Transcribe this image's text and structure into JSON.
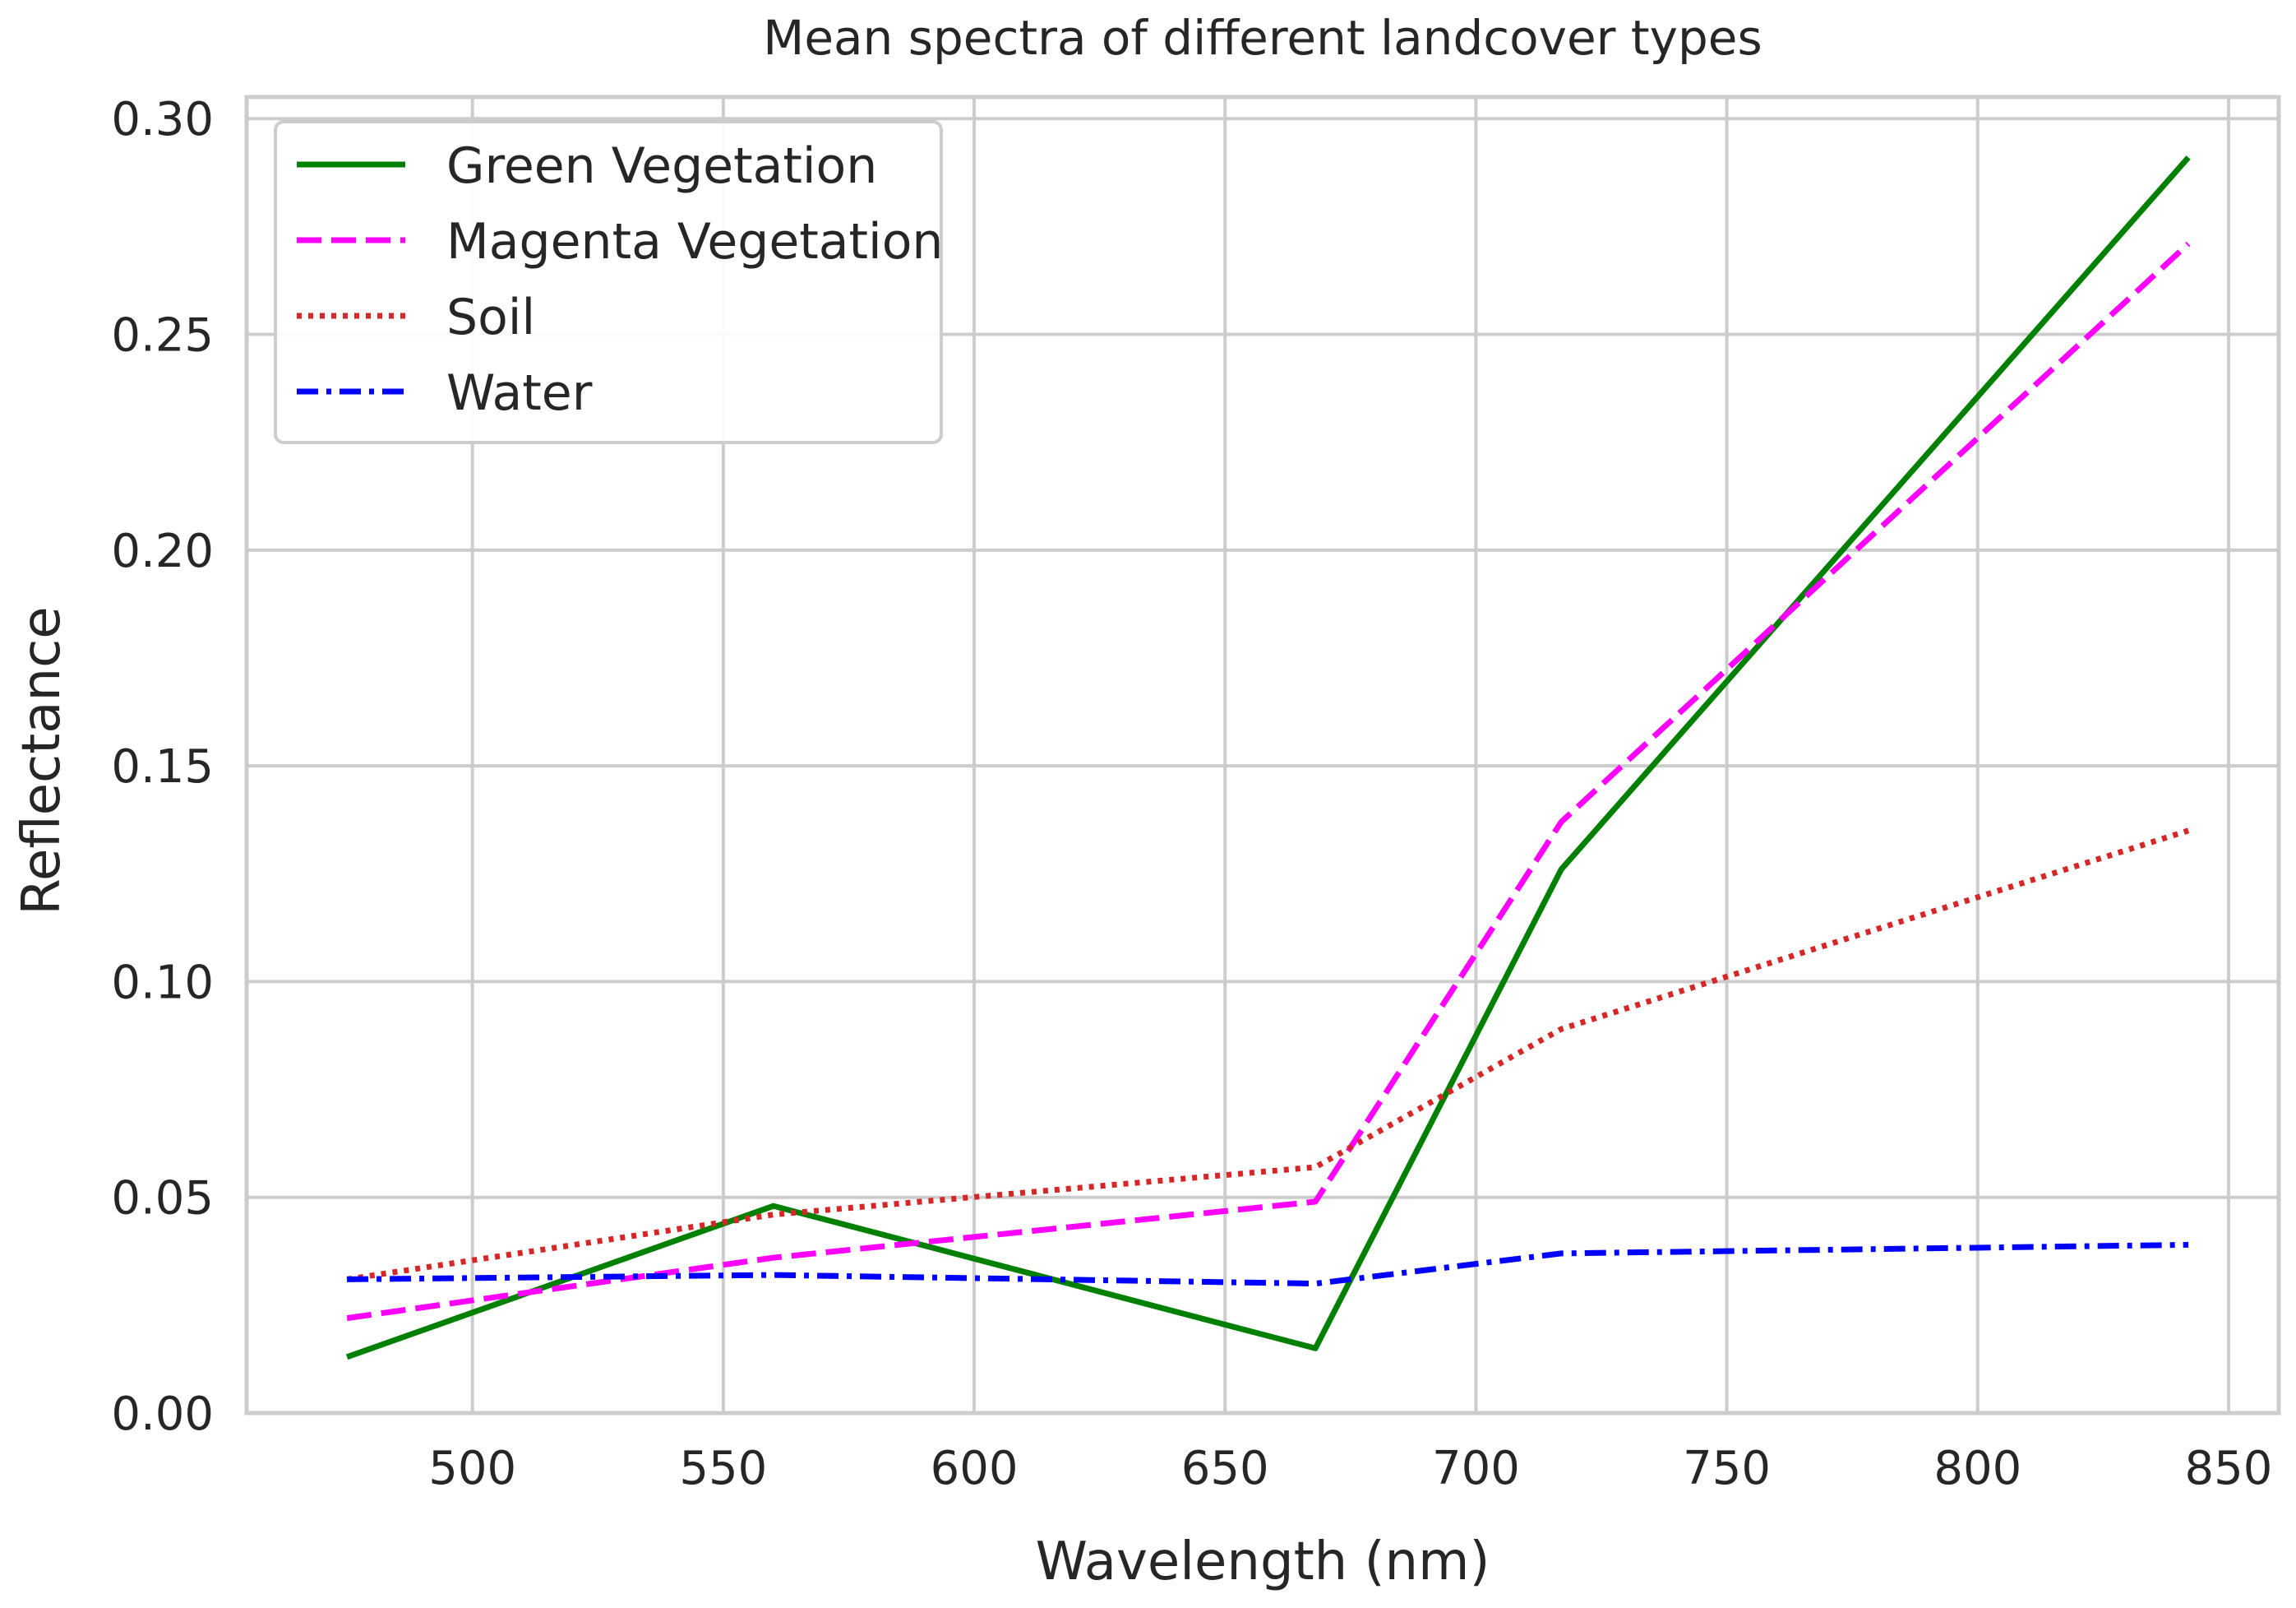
{
  "chart_data": {
    "type": "line",
    "title": "Mean spectra of different landcover types",
    "xlabel": "Wavelength (nm)",
    "ylabel": "Reflectance",
    "xlim": [
      455,
      860
    ],
    "ylim": [
      0.0,
      0.305
    ],
    "grid": true,
    "legend_position": "top-left",
    "xticks": [
      500,
      550,
      600,
      650,
      700,
      750,
      800,
      850
    ],
    "xtick_labels": [
      "500",
      "550",
      "600",
      "650",
      "700",
      "750",
      "800",
      "850"
    ],
    "yticks": [
      0.0,
      0.05,
      0.1,
      0.15,
      0.2,
      0.25,
      0.3
    ],
    "ytick_labels": [
      "0.00",
      "0.05",
      "0.10",
      "0.15",
      "0.20",
      "0.25",
      "0.30"
    ],
    "x": [
      475,
      560,
      668,
      717,
      842
    ],
    "series": [
      {
        "name": "Green Vegetation",
        "color": "#008000",
        "line_style": "solid",
        "values": [
          0.013,
          0.048,
          0.015,
          0.126,
          0.291
        ]
      },
      {
        "name": "Magenta Vegetation",
        "color": "#ff00ff",
        "line_style": "dashed",
        "values": [
          0.022,
          0.036,
          0.049,
          0.137,
          0.271
        ]
      },
      {
        "name": "Soil",
        "color": "#d62728",
        "line_style": "dotted",
        "values": [
          0.031,
          0.046,
          0.057,
          0.089,
          0.135
        ]
      },
      {
        "name": "Water",
        "color": "#0000ff",
        "line_style": "dashdot",
        "values": [
          0.031,
          0.032,
          0.03,
          0.037,
          0.039
        ]
      }
    ]
  }
}
